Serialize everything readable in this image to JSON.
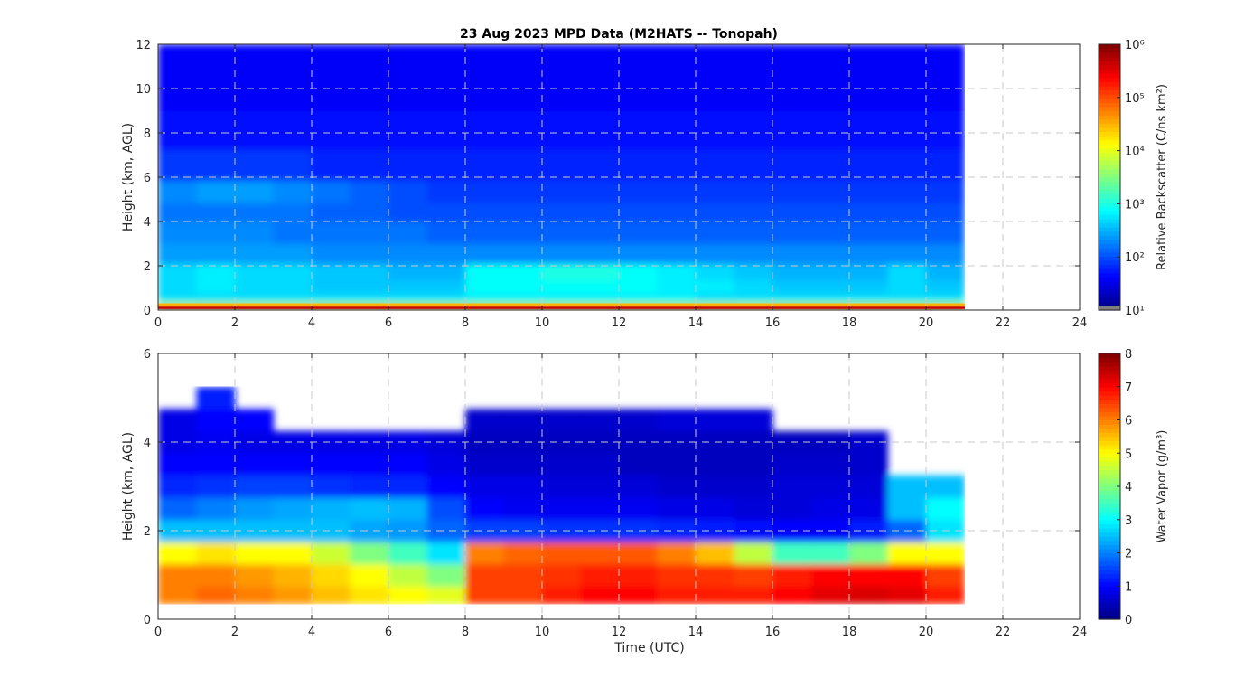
{
  "chart_data": [
    {
      "type": "heatmap",
      "title": "23 Aug 2023 MPD Data (M2HATS -- Tonopah)",
      "xlabel": "",
      "ylabel": "Height (km, AGL)",
      "xlim": [
        0,
        24
      ],
      "ylim": [
        0,
        12
      ],
      "xticks": [
        "0",
        "2",
        "4",
        "6",
        "8",
        "10",
        "12",
        "14",
        "16",
        "18",
        "20",
        "22",
        "24"
      ],
      "yticks": [
        "0",
        "2",
        "4",
        "6",
        "8",
        "10",
        "12"
      ],
      "grid": true,
      "colorbar": {
        "label": "Relative Backscatter (C/ns km²)",
        "scale": "log",
        "range": [
          10,
          1000000
        ],
        "ticks": [
          "10¹",
          "10²",
          "10³",
          "10⁴",
          "10⁵",
          "10⁶"
        ]
      },
      "x": [
        0.5,
        1.5,
        2.5,
        3.5,
        4.5,
        5.5,
        6.5,
        7.5,
        8.5,
        9.5,
        10.5,
        11.5,
        12.5,
        13.5,
        14.5,
        15.5,
        16.5,
        17.5,
        18.5,
        19.5,
        20.5
      ],
      "heights": [
        0.05,
        0.2,
        0.35,
        0.6,
        1.0,
        1.7,
        2.5,
        3.5,
        4.5,
        5.2,
        6.5,
        8,
        10,
        11.5
      ],
      "log10_values": [
        [
          5.8,
          5.8,
          5.8,
          5.8,
          5.8,
          5.8,
          5.8,
          5.8,
          5.8,
          5.8,
          5.8,
          5.8,
          5.8,
          5.8,
          5.8,
          5.8,
          5.8,
          5.8,
          5.9,
          5.9,
          5.9
        ],
        [
          4.4,
          4.4,
          4.4,
          4.4,
          4.4,
          4.4,
          4.4,
          4.4,
          4.4,
          4.4,
          4.4,
          4.4,
          4.4,
          4.4,
          4.4,
          4.4,
          4.4,
          4.4,
          4.4,
          4.4,
          4.4
        ],
        [
          3.2,
          3.2,
          3.2,
          3.2,
          3.2,
          3.2,
          3.2,
          3.2,
          3.2,
          3.2,
          3.2,
          3.2,
          3.2,
          3.2,
          3.2,
          3.2,
          3.2,
          3.2,
          3.2,
          3.2,
          3.2
        ],
        [
          2.7,
          2.7,
          2.7,
          2.7,
          2.7,
          2.7,
          2.7,
          2.7,
          2.8,
          2.8,
          2.8,
          2.8,
          2.8,
          2.8,
          2.7,
          2.7,
          2.7,
          2.7,
          2.7,
          2.7,
          2.7
        ],
        [
          2.7,
          2.8,
          2.7,
          2.7,
          2.6,
          2.6,
          2.6,
          2.6,
          2.9,
          2.9,
          2.9,
          2.9,
          2.9,
          2.8,
          2.8,
          2.7,
          2.6,
          2.6,
          2.6,
          2.7,
          2.6
        ],
        [
          2.7,
          2.8,
          2.7,
          2.7,
          2.6,
          2.6,
          2.5,
          2.5,
          2.9,
          2.9,
          3.0,
          3.0,
          2.9,
          2.8,
          2.7,
          2.6,
          2.5,
          2.5,
          2.5,
          2.7,
          2.5
        ],
        [
          2.4,
          2.4,
          2.4,
          2.4,
          2.3,
          2.3,
          2.3,
          2.3,
          2.3,
          2.3,
          2.3,
          2.3,
          2.3,
          2.3,
          2.3,
          2.3,
          2.3,
          2.3,
          2.3,
          2.3,
          2.3
        ],
        [
          2.3,
          2.3,
          2.3,
          2.2,
          2.2,
          2.2,
          2.2,
          2.1,
          2.1,
          2.1,
          2.1,
          2.1,
          2.1,
          2.1,
          2.1,
          2.1,
          2.1,
          2.1,
          2.1,
          2.1,
          2.1
        ],
        [
          2.2,
          2.2,
          2.2,
          2.2,
          2.1,
          2.1,
          2.0,
          2.0,
          2.0,
          2.0,
          2.0,
          2.0,
          2.0,
          2.0,
          2.0,
          2.0,
          2.0,
          2.0,
          2.0,
          2.0,
          2.0
        ],
        [
          2.3,
          2.4,
          2.4,
          2.3,
          2.2,
          2.1,
          2.0,
          1.9,
          1.9,
          1.9,
          1.9,
          1.9,
          1.9,
          1.9,
          1.9,
          1.9,
          1.9,
          1.9,
          1.9,
          1.9,
          1.9
        ],
        [
          1.9,
          1.9,
          1.9,
          1.9,
          1.8,
          1.8,
          1.8,
          1.8,
          1.8,
          1.8,
          1.8,
          1.8,
          1.8,
          1.8,
          1.8,
          1.8,
          1.8,
          1.8,
          1.8,
          1.8,
          1.8
        ],
        [
          1.7,
          1.7,
          1.7,
          1.7,
          1.7,
          1.7,
          1.7,
          1.7,
          1.7,
          1.7,
          1.7,
          1.7,
          1.7,
          1.7,
          1.7,
          1.7,
          1.7,
          1.7,
          1.7,
          1.7,
          1.7
        ],
        [
          1.6,
          1.6,
          1.6,
          1.6,
          1.6,
          1.6,
          1.6,
          1.6,
          1.6,
          1.6,
          1.6,
          1.6,
          1.6,
          1.6,
          1.6,
          1.6,
          1.6,
          1.6,
          1.6,
          1.6,
          1.6
        ],
        [
          1.6,
          1.6,
          1.6,
          1.6,
          1.6,
          1.6,
          1.6,
          1.6,
          1.6,
          1.6,
          1.6,
          1.6,
          1.6,
          1.6,
          1.6,
          1.6,
          1.6,
          1.6,
          1.6,
          1.6,
          1.6
        ]
      ]
    },
    {
      "type": "heatmap",
      "xlabel": "Time (UTC)",
      "ylabel": "Height (km, AGL)",
      "xlim": [
        0,
        24
      ],
      "ylim": [
        0,
        6
      ],
      "xticks": [
        "0",
        "2",
        "4",
        "6",
        "8",
        "10",
        "12",
        "14",
        "16",
        "18",
        "20",
        "22",
        "24"
      ],
      "yticks": [
        "0",
        "2",
        "4",
        "6"
      ],
      "grid": true,
      "colorbar": {
        "label": "Water Vapor (g/m³)",
        "scale": "linear",
        "range": [
          0,
          8
        ],
        "ticks": [
          "0",
          "1",
          "2",
          "3",
          "4",
          "5",
          "6",
          "7",
          "8"
        ]
      },
      "x": [
        0.5,
        1.5,
        2.5,
        3.5,
        4.5,
        5.5,
        6.5,
        7.5,
        8.5,
        9.5,
        10.5,
        11.5,
        12.5,
        13.5,
        14.5,
        15.5,
        16.5,
        17.5,
        18.5,
        19.5,
        20.5
      ],
      "data_bottom_km": 0.35,
      "heights": [
        0.5,
        1.0,
        1.5,
        2.0,
        2.5,
        3.0,
        3.5,
        4.0,
        4.5,
        5.0
      ],
      "values": [
        [
          6.0,
          6.2,
          6.0,
          5.8,
          5.5,
          5.2,
          5.0,
          4.8,
          6.5,
          6.5,
          6.8,
          7.0,
          7.0,
          6.8,
          6.8,
          6.8,
          7.0,
          7.2,
          7.3,
          7.2,
          6.8
        ],
        [
          6.0,
          6.0,
          5.8,
          5.6,
          5.3,
          5.0,
          4.5,
          4.0,
          6.5,
          6.5,
          6.6,
          6.8,
          6.8,
          6.6,
          6.6,
          6.5,
          6.8,
          7.0,
          7.0,
          7.0,
          6.5
        ],
        [
          5.0,
          5.2,
          5.0,
          5.0,
          4.6,
          4.0,
          3.5,
          2.8,
          6.0,
          6.2,
          6.3,
          6.3,
          6.3,
          6.0,
          5.5,
          4.5,
          3.5,
          3.5,
          4.0,
          5.0,
          5.0
        ],
        [
          2.5,
          2.5,
          2.5,
          2.5,
          2.5,
          2.3,
          2.2,
          1.8,
          1.5,
          1.5,
          1.4,
          1.4,
          1.4,
          1.3,
          1.2,
          1.1,
          1.0,
          1.0,
          1.2,
          1.8,
          2.8
        ],
        [
          1.8,
          2.0,
          2.2,
          2.3,
          2.4,
          2.5,
          2.4,
          1.6,
          1.0,
          0.9,
          0.9,
          0.9,
          0.9,
          0.8,
          0.8,
          0.7,
          0.7,
          0.8,
          0.8,
          2.5,
          3.0
        ],
        [
          1.3,
          1.4,
          1.5,
          1.5,
          1.4,
          1.3,
          1.3,
          1.0,
          0.8,
          0.8,
          0.7,
          0.7,
          0.7,
          0.6,
          0.6,
          0.6,
          0.7,
          0.7,
          0.7,
          2.5,
          2.5
        ],
        [
          1.0,
          1.0,
          1.0,
          1.0,
          1.0,
          1.0,
          1.0,
          0.8,
          0.6,
          0.6,
          0.6,
          0.6,
          0.5,
          0.5,
          0.5,
          0.5,
          0.6,
          0.6,
          0.6,
          null,
          null
        ],
        [
          0.8,
          0.9,
          0.8,
          0.8,
          0.8,
          0.8,
          0.8,
          0.7,
          0.5,
          0.5,
          0.5,
          0.5,
          0.5,
          0.5,
          0.5,
          0.5,
          0.5,
          0.5,
          0.6,
          null,
          null
        ],
        [
          0.8,
          1.0,
          1.0,
          null,
          null,
          null,
          null,
          null,
          0.6,
          0.6,
          0.6,
          0.6,
          0.6,
          0.7,
          0.7,
          0.7,
          null,
          null,
          null,
          null,
          null
        ],
        [
          null,
          1.2,
          null,
          null,
          null,
          null,
          null,
          null,
          null,
          null,
          null,
          null,
          null,
          null,
          null,
          null,
          null,
          null,
          null,
          null,
          null
        ]
      ]
    }
  ]
}
